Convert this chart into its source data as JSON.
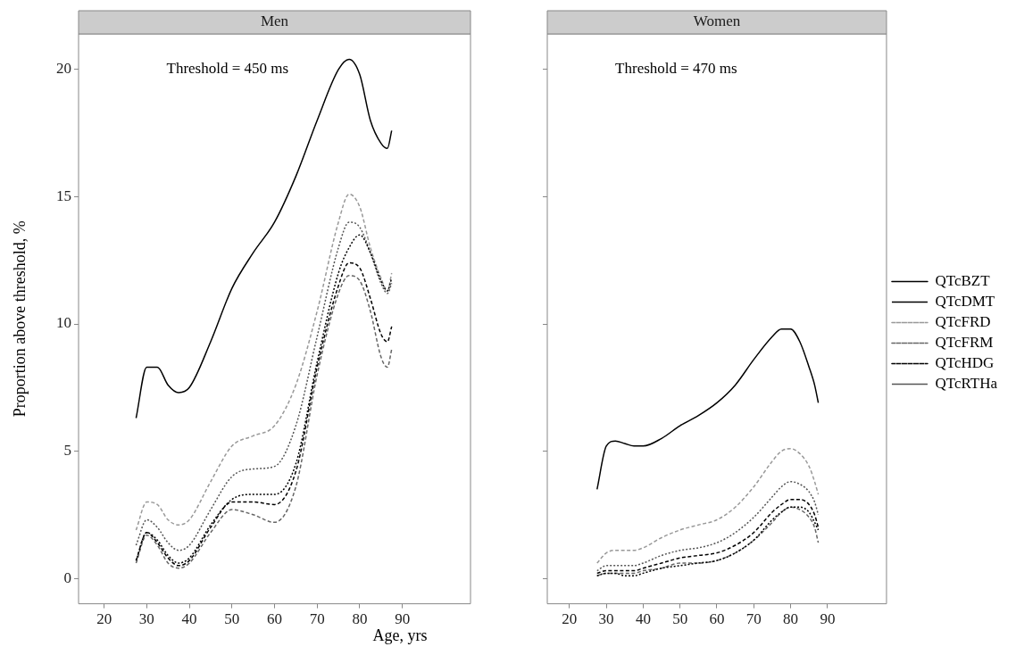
{
  "chart_data": [
    {
      "type": "line",
      "title": "Men",
      "xlabel": "Age, yrs",
      "ylabel": "Proportion above threshold, %",
      "annotations": [
        "Threshold = 450 ms"
      ],
      "x": [
        27.5,
        30,
        32.5,
        35,
        37.5,
        40,
        45,
        50,
        55,
        60,
        65,
        70,
        75,
        77.5,
        80,
        82.5,
        85,
        86.5,
        87.5
      ],
      "xlim": [
        14,
        106
      ],
      "xticks": [
        20,
        30,
        40,
        50,
        60,
        70,
        80,
        90
      ],
      "ylim": [
        -1,
        21.4
      ],
      "yticks": [
        0,
        5,
        10,
        15,
        20
      ],
      "grid": false,
      "legend": false,
      "tick_labels": "xy",
      "series": [
        {
          "color": "#000000",
          "line_style": "solid",
          "values": [
            6.3,
            8.3,
            8.3,
            7.6,
            7.3,
            7.5,
            9.3,
            11.4,
            12.8,
            14.0,
            15.8,
            18.0,
            20.0,
            20.4,
            19.8,
            18.0,
            17.1,
            16.9,
            17.6
          ]
        },
        {
          "color": "#000000",
          "line_style": "dotted",
          "values": [
            0.7,
            1.8,
            1.5,
            0.9,
            0.6,
            0.8,
            2.1,
            3.1,
            3.3,
            3.3,
            4.5,
            8.5,
            12.0,
            13.0,
            13.5,
            12.8,
            11.7,
            11.3,
            11.8
          ]
        },
        {
          "color": "#999999",
          "line_style": "dashed",
          "values": [
            1.9,
            3.0,
            2.9,
            2.3,
            2.1,
            2.3,
            3.8,
            5.2,
            5.6,
            6.0,
            7.6,
            10.5,
            14.0,
            15.1,
            14.6,
            13.0,
            11.8,
            11.3,
            12.0
          ]
        },
        {
          "color": "#666666",
          "line_style": "dashed",
          "values": [
            0.6,
            1.7,
            1.3,
            0.6,
            0.4,
            0.6,
            1.8,
            2.7,
            2.5,
            2.2,
            3.6,
            8.0,
            11.2,
            11.9,
            11.7,
            10.5,
            8.7,
            8.3,
            9.0
          ]
        },
        {
          "color": "#000000",
          "line_style": "dashed",
          "values": [
            0.7,
            1.8,
            1.4,
            0.8,
            0.5,
            0.7,
            2.0,
            3.0,
            3.0,
            2.9,
            4.2,
            8.3,
            11.5,
            12.4,
            12.2,
            11.0,
            9.6,
            9.3,
            9.9
          ]
        },
        {
          "color": "#555555",
          "line_style": "dotted",
          "values": [
            1.3,
            2.3,
            2.0,
            1.4,
            1.1,
            1.3,
            2.7,
            4.0,
            4.3,
            4.4,
            6.0,
            9.5,
            13.0,
            14.0,
            13.8,
            12.8,
            11.6,
            11.2,
            11.6
          ]
        }
      ]
    },
    {
      "type": "line",
      "title": "Women",
      "annotations": [
        "Threshold = 470 ms"
      ],
      "x": [
        27.5,
        30,
        32.5,
        35,
        37.5,
        40,
        45,
        50,
        55,
        60,
        65,
        70,
        75,
        77.5,
        80,
        82.5,
        85,
        86.5,
        87.5
      ],
      "xlim": [
        14,
        106
      ],
      "xticks": [
        20,
        30,
        40,
        50,
        60,
        70,
        80,
        90
      ],
      "ylim": [
        -1,
        21.4
      ],
      "yticks": [
        0,
        5,
        10,
        15,
        20
      ],
      "grid": false,
      "legend": "right",
      "tick_labels": "x",
      "series": [
        {
          "name": "QTcBZT",
          "color": "#000000",
          "line_style": "solid",
          "values": [
            3.5,
            5.2,
            5.4,
            5.3,
            5.2,
            5.2,
            5.5,
            6.0,
            6.4,
            6.9,
            7.6,
            8.6,
            9.5,
            9.8,
            9.8,
            9.3,
            8.3,
            7.6,
            6.9
          ]
        },
        {
          "name": "QTcDMT",
          "color": "#000000",
          "line_style": "dotted",
          "values": [
            0.1,
            0.2,
            0.2,
            0.1,
            0.1,
            0.2,
            0.4,
            0.5,
            0.6,
            0.7,
            1.0,
            1.5,
            2.3,
            2.6,
            2.8,
            2.8,
            2.6,
            2.2,
            1.9
          ]
        },
        {
          "name": "QTcFRD",
          "color": "#999999",
          "line_style": "dashed",
          "values": [
            0.6,
            1.0,
            1.1,
            1.1,
            1.1,
            1.2,
            1.6,
            1.9,
            2.1,
            2.3,
            2.8,
            3.6,
            4.6,
            5.0,
            5.1,
            4.9,
            4.4,
            3.8,
            3.3
          ]
        },
        {
          "name": "QTcFRM",
          "color": "#666666",
          "line_style": "dashed",
          "values": [
            0.1,
            0.2,
            0.2,
            0.2,
            0.2,
            0.3,
            0.4,
            0.6,
            0.6,
            0.7,
            1.0,
            1.5,
            2.2,
            2.6,
            2.8,
            2.7,
            2.4,
            2.0,
            1.4
          ]
        },
        {
          "name": "QTcHDG",
          "color": "#000000",
          "line_style": "dashed",
          "values": [
            0.2,
            0.3,
            0.3,
            0.3,
            0.3,
            0.4,
            0.6,
            0.8,
            0.9,
            1.0,
            1.3,
            1.8,
            2.6,
            2.9,
            3.1,
            3.1,
            2.9,
            2.5,
            2.0
          ]
        },
        {
          "name": "QTcRTHa",
          "color": "#555555",
          "line_style": "dotted",
          "values": [
            0.3,
            0.5,
            0.5,
            0.5,
            0.5,
            0.6,
            0.9,
            1.1,
            1.2,
            1.4,
            1.8,
            2.4,
            3.2,
            3.6,
            3.8,
            3.7,
            3.4,
            3.0,
            2.5
          ]
        }
      ]
    }
  ]
}
